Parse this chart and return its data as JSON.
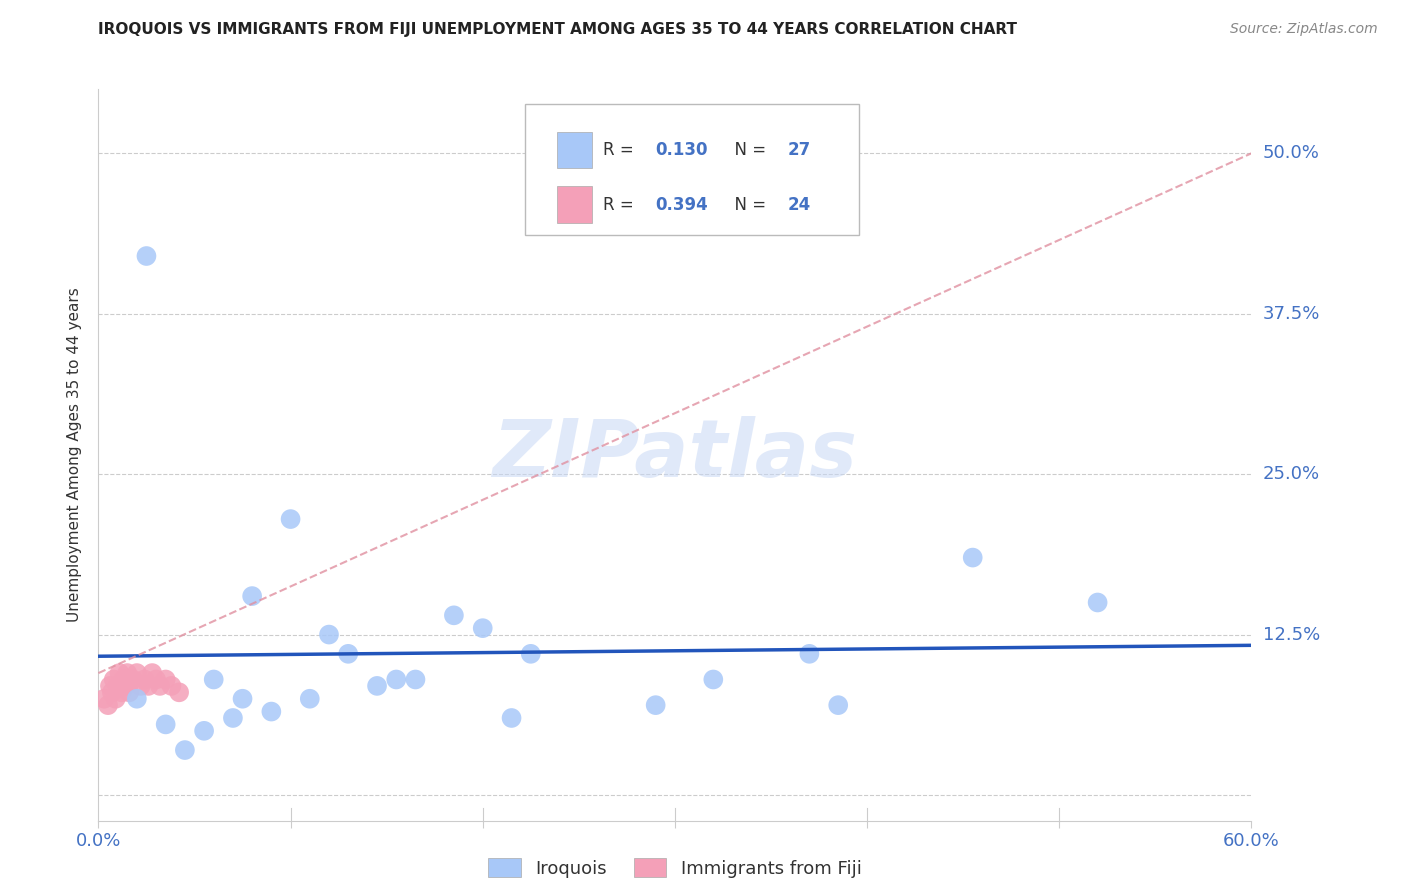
{
  "title": "IROQUOIS VS IMMIGRANTS FROM FIJI UNEMPLOYMENT AMONG AGES 35 TO 44 YEARS CORRELATION CHART",
  "source": "Source: ZipAtlas.com",
  "ylabel": "Unemployment Among Ages 35 to 44 years",
  "xlim": [
    0.0,
    0.6
  ],
  "ylim": [
    -0.02,
    0.55
  ],
  "xticks": [
    0.0,
    0.1,
    0.2,
    0.3,
    0.4,
    0.5,
    0.6
  ],
  "xticklabels": [
    "0.0%",
    "",
    "",
    "",
    "",
    "",
    "60.0%"
  ],
  "yticks": [
    0.0,
    0.125,
    0.25,
    0.375,
    0.5
  ],
  "yticklabels_right": [
    "",
    "12.5%",
    "25.0%",
    "37.5%",
    "50.0%"
  ],
  "iroquois_R": 0.13,
  "iroquois_N": 27,
  "fiji_R": 0.394,
  "fiji_N": 24,
  "iroquois_color": "#a8c8f8",
  "fiji_color": "#f4a0b8",
  "iroquois_line_color": "#2255bb",
  "fiji_line_color": "#e090a0",
  "watermark": "ZIPatlas",
  "iroquois_x": [
    0.02,
    0.025,
    0.035,
    0.045,
    0.055,
    0.06,
    0.07,
    0.075,
    0.08,
    0.09,
    0.1,
    0.11,
    0.12,
    0.13,
    0.145,
    0.155,
    0.165,
    0.185,
    0.2,
    0.215,
    0.225,
    0.29,
    0.32,
    0.37,
    0.385,
    0.455,
    0.52
  ],
  "iroquois_y": [
    0.075,
    0.42,
    0.055,
    0.035,
    0.05,
    0.09,
    0.06,
    0.075,
    0.155,
    0.065,
    0.215,
    0.075,
    0.125,
    0.11,
    0.085,
    0.09,
    0.09,
    0.14,
    0.13,
    0.06,
    0.11,
    0.07,
    0.09,
    0.11,
    0.07,
    0.185,
    0.15
  ],
  "fiji_x": [
    0.003,
    0.005,
    0.006,
    0.007,
    0.008,
    0.009,
    0.01,
    0.011,
    0.012,
    0.013,
    0.014,
    0.015,
    0.016,
    0.018,
    0.02,
    0.022,
    0.024,
    0.026,
    0.028,
    0.03,
    0.032,
    0.035,
    0.038,
    0.042
  ],
  "fiji_y": [
    0.075,
    0.07,
    0.085,
    0.08,
    0.09,
    0.075,
    0.085,
    0.095,
    0.08,
    0.09,
    0.085,
    0.095,
    0.08,
    0.09,
    0.095,
    0.085,
    0.09,
    0.085,
    0.095,
    0.09,
    0.085,
    0.09,
    0.085,
    0.08
  ],
  "tick_color": "#4472c4",
  "grid_color": "#cccccc",
  "title_fontsize": 11,
  "source_fontsize": 10,
  "tick_fontsize": 13,
  "ylabel_fontsize": 11
}
